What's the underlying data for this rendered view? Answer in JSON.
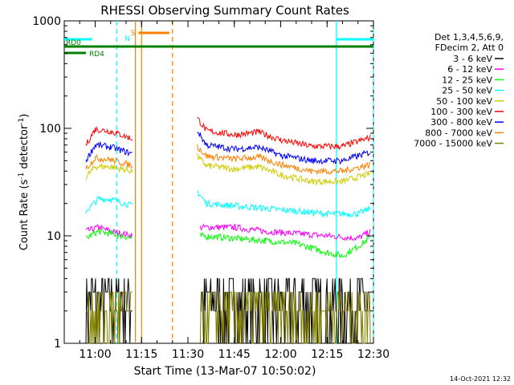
{
  "chart_data": {
    "type": "line",
    "title": "RHESSI Observing Summary Count Rates",
    "xlabel": "Start Time (13-Mar-07 10:50:02)",
    "ylabel_main": "Count Rate (s",
    "ylabel_sup1": "-1",
    "ylabel_mid": " detector",
    "ylabel_sup2": "-1",
    "ylabel_end": ")",
    "yscale": "log",
    "ylim": [
      1,
      1000
    ],
    "xlim_minutes_after_1050": [
      0,
      100
    ],
    "x_ticks": [
      {
        "label": "11:00",
        "min": 10
      },
      {
        "label": "11:15",
        "min": 25
      },
      {
        "label": "11:30",
        "min": 40
      },
      {
        "label": "11:45",
        "min": 55
      },
      {
        "label": "12:00",
        "min": 70
      },
      {
        "label": "12:15",
        "min": 85
      },
      {
        "label": "12:30",
        "min": 100
      }
    ],
    "y_ticks": [
      {
        "label": "1",
        "v": 1
      },
      {
        "label": "10",
        "v": 10
      },
      {
        "label": "100",
        "v": 100
      },
      {
        "label": "1000",
        "v": 1000
      }
    ],
    "legend_header": [
      "Det 1,3,4,5,6,9,",
      "FDecim 2, Att 0"
    ],
    "series": [
      {
        "name": "3 - 6 keV",
        "color": "#000000",
        "segments": [
          [
            [
              7,
              3
            ],
            [
              22,
              3
            ]
          ],
          [
            [
              44,
              3
            ],
            [
              99,
              3
            ]
          ]
        ]
      },
      {
        "name": "6 - 12 keV",
        "color": "#ff00ff",
        "segments": [
          [
            [
              7,
              11
            ],
            [
              11,
              12
            ],
            [
              15,
              11
            ],
            [
              22,
              10
            ]
          ],
          [
            [
              44,
              12
            ],
            [
              55,
              12
            ],
            [
              65,
              11
            ],
            [
              75,
              10.5
            ],
            [
              85,
              10
            ],
            [
              95,
              9.5
            ],
            [
              99,
              11
            ]
          ]
        ]
      },
      {
        "name": "12 - 25 keV",
        "color": "#00ff00",
        "segments": [
          [
            [
              7,
              9.5
            ],
            [
              11,
              11
            ],
            [
              15,
              10.5
            ],
            [
              22,
              9.5
            ]
          ],
          [
            [
              44,
              10
            ],
            [
              55,
              9.5
            ],
            [
              65,
              9
            ],
            [
              75,
              8.5
            ],
            [
              85,
              7
            ],
            [
              90,
              6.5
            ],
            [
              95,
              8
            ],
            [
              99,
              9.5
            ]
          ]
        ]
      },
      {
        "name": "25 - 50 keV",
        "color": "#00ffff",
        "segments": [
          [
            [
              7,
              17
            ],
            [
              11,
              22
            ],
            [
              15,
              22
            ],
            [
              22,
              19
            ]
          ],
          [
            [
              43,
              26
            ],
            [
              46,
              20
            ],
            [
              55,
              19
            ],
            [
              65,
              18
            ],
            [
              75,
              17
            ],
            [
              85,
              16
            ],
            [
              95,
              16
            ],
            [
              99,
              18
            ]
          ]
        ]
      },
      {
        "name": "50 - 100 keV",
        "color": "#cccc00",
        "segments": [
          [
            [
              7,
              35
            ],
            [
              10,
              44
            ],
            [
              15,
              44
            ],
            [
              22,
              40
            ]
          ],
          [
            [
              43,
              55
            ],
            [
              46,
              45
            ],
            [
              55,
              42
            ],
            [
              63,
              44
            ],
            [
              70,
              37
            ],
            [
              80,
              32
            ],
            [
              90,
              32
            ],
            [
              99,
              38
            ]
          ]
        ]
      },
      {
        "name": "100 - 300 keV",
        "color": "#ff0000",
        "segments": [
          [
            [
              7,
              70
            ],
            [
              10,
              98
            ],
            [
              15,
              94
            ],
            [
              22,
              80
            ]
          ],
          [
            [
              43,
              125
            ],
            [
              46,
              95
            ],
            [
              55,
              87
            ],
            [
              63,
              92
            ],
            [
              70,
              78
            ],
            [
              80,
              68
            ],
            [
              90,
              68
            ],
            [
              99,
              82
            ]
          ]
        ]
      },
      {
        "name": "300 - 800 keV",
        "color": "#0000ff",
        "segments": [
          [
            [
              7,
              50
            ],
            [
              10,
              70
            ],
            [
              15,
              67
            ],
            [
              22,
              58
            ]
          ],
          [
            [
              43,
              95
            ],
            [
              46,
              70
            ],
            [
              55,
              64
            ],
            [
              63,
              67
            ],
            [
              70,
              56
            ],
            [
              80,
              50
            ],
            [
              90,
              50
            ],
            [
              99,
              60
            ]
          ]
        ]
      },
      {
        "name": "800 - 7000 keV",
        "color": "#ff8000",
        "segments": [
          [
            [
              7,
              42
            ],
            [
              10,
              53
            ],
            [
              15,
              51
            ],
            [
              22,
              45
            ]
          ],
          [
            [
              43,
              68
            ],
            [
              46,
              55
            ],
            [
              55,
              52
            ],
            [
              63,
              54
            ],
            [
              70,
              46
            ],
            [
              80,
              40
            ],
            [
              90,
              40
            ],
            [
              99,
              46
            ]
          ]
        ]
      },
      {
        "name": "7000 - 15000 keV",
        "color": "#808000",
        "segments": [
          [
            [
              7,
              2.5
            ],
            [
              22,
              2.5
            ]
          ],
          [
            [
              44,
              2.5
            ],
            [
              99,
              2.5
            ]
          ]
        ]
      }
    ],
    "flag_bars": [
      {
        "label": "",
        "color": "#00ffff",
        "from": 0,
        "to": 9
      },
      {
        "label": "",
        "color": "#00ffff",
        "from": 88,
        "to": 100
      },
      {
        "label": "",
        "color": "#ff8000",
        "from": 24,
        "to": 34
      },
      {
        "label": "RD0",
        "color": "#008000",
        "from": 0,
        "to": 100
      },
      {
        "label": "RD4",
        "color": "#008000",
        "from": 0,
        "to": 7
      }
    ],
    "flag_letters": [
      {
        "text": "S",
        "color": "#ff8000",
        "min": 21.5
      },
      {
        "text": "N",
        "color": "#00ffff",
        "min": 19.5
      }
    ],
    "vertical_markers": [
      {
        "min": 17,
        "color": "#00ffff",
        "style": "dashed"
      },
      {
        "min": 23,
        "color": "#ff8000",
        "style": "solid"
      },
      {
        "min": 25,
        "color": "#ff8000",
        "style": "solid"
      },
      {
        "min": 35,
        "color": "#ff8000",
        "style": "dashed"
      },
      {
        "min": 88,
        "color": "#00ffff",
        "style": "solid"
      },
      {
        "min": 100,
        "color": "#00ffff",
        "style": "dashed"
      }
    ],
    "timestamp": "14-Oct-2021 12:32"
  }
}
